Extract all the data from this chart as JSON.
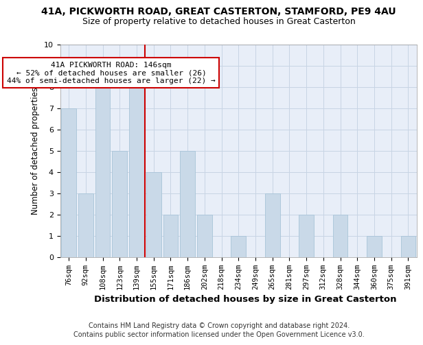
{
  "title_line1": "41A, PICKWORTH ROAD, GREAT CASTERTON, STAMFORD, PE9 4AU",
  "title_line2": "Size of property relative to detached houses in Great Casterton",
  "xlabel": "Distribution of detached houses by size in Great Casterton",
  "ylabel": "Number of detached properties",
  "categories": [
    "76sqm",
    "92sqm",
    "108sqm",
    "123sqm",
    "139sqm",
    "155sqm",
    "171sqm",
    "186sqm",
    "202sqm",
    "218sqm",
    "234sqm",
    "249sqm",
    "265sqm",
    "281sqm",
    "297sqm",
    "312sqm",
    "328sqm",
    "344sqm",
    "360sqm",
    "375sqm",
    "391sqm"
  ],
  "values": [
    7,
    3,
    8,
    5,
    8,
    4,
    2,
    5,
    2,
    0,
    1,
    0,
    3,
    0,
    2,
    0,
    2,
    0,
    1,
    0,
    1
  ],
  "bar_color": "#c9d9e8",
  "bar_edge_color": "#a8c4d8",
  "vline_x_index": 4.5,
  "vline_color": "#cc0000",
  "annotation_text": "41A PICKWORTH ROAD: 146sqm\n← 52% of detached houses are smaller (26)\n44% of semi-detached houses are larger (22) →",
  "annotation_box_color": "#ffffff",
  "annotation_box_edge": "#cc0000",
  "ylim": [
    0,
    10
  ],
  "yticks": [
    0,
    1,
    2,
    3,
    4,
    5,
    6,
    7,
    8,
    9,
    10
  ],
  "grid_color": "#c8d4e4",
  "background_color": "#e8eef8",
  "footer1": "Contains HM Land Registry data © Crown copyright and database right 2024.",
  "footer2": "Contains public sector information licensed under the Open Government Licence v3.0.",
  "title_fontsize": 10,
  "subtitle_fontsize": 9,
  "xlabel_fontsize": 9.5,
  "ylabel_fontsize": 8.5,
  "tick_fontsize": 7.5,
  "annotation_fontsize": 8,
  "footer_fontsize": 7
}
